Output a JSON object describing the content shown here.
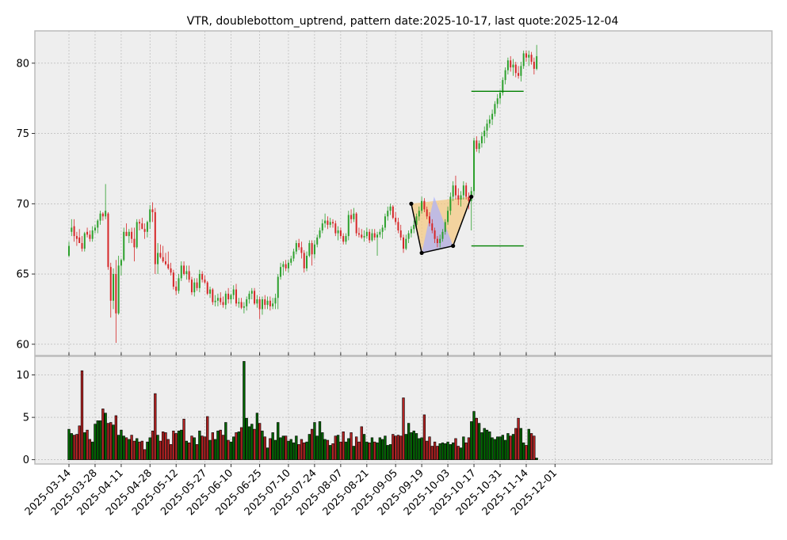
{
  "chart_data": {
    "type": "candlestick",
    "title": "VTR, doublebottom_uptrend, pattern date:2025-10-17, last quote:2025-12-04",
    "colors": {
      "up": "#2ca02c",
      "down": "#d62728",
      "vol_up": "#006400",
      "vol_down": "#b22222",
      "panel_bg": "#eeeeee",
      "grid": "#b0b0b0",
      "pattern_line": "#000000",
      "level_line": "#008000",
      "fill_orange": "#f5c77e",
      "fill_blue": "#aab0ff"
    },
    "price_axis": {
      "ylim": [
        59.2,
        82.3
      ],
      "ticks": [
        60,
        65,
        70,
        75,
        80
      ]
    },
    "volume_axis": {
      "ylim": [
        -0.5,
        12.2
      ],
      "ticks": [
        0,
        5,
        10
      ]
    },
    "x_tick_labels": [
      "2025-03-14",
      "2025-03-28",
      "2025-04-11",
      "2025-04-28",
      "2025-05-12",
      "2025-05-27",
      "2025-06-10",
      "2025-06-25",
      "2025-07-10",
      "2025-07-24",
      "2025-08-07",
      "2025-08-21",
      "2025-09-05",
      "2025-09-19",
      "2025-10-03",
      "2025-10-17",
      "2025-10-31",
      "2025-11-14",
      "2025-12-01"
    ],
    "start_date": "2025-03-14",
    "bar_count": 187,
    "grid": true,
    "candles": [
      [
        66.3,
        67.3,
        66.2,
        67.0,
        3.6
      ],
      [
        68.0,
        68.9,
        67.7,
        68.3,
        3.1
      ],
      [
        68.4,
        68.9,
        67.3,
        67.7,
        2.9
      ],
      [
        67.7,
        68.0,
        67.0,
        67.5,
        3.0
      ],
      [
        67.6,
        68.2,
        67.2,
        67.2,
        4.0
      ],
      [
        67.2,
        67.7,
        66.6,
        66.8,
        10.5
      ],
      [
        66.8,
        68.0,
        66.6,
        67.9,
        3.2
      ],
      [
        68.0,
        68.3,
        67.6,
        67.8,
        3.5
      ],
      [
        67.8,
        68.1,
        67.3,
        67.5,
        2.4
      ],
      [
        67.5,
        68.4,
        67.3,
        68.1,
        2.1
      ],
      [
        68.1,
        68.5,
        67.9,
        68.3,
        4.2
      ],
      [
        68.3,
        68.9,
        67.9,
        68.8,
        4.6
      ],
      [
        68.8,
        69.5,
        68.5,
        69.3,
        4.6
      ],
      [
        69.3,
        69.4,
        68.8,
        69.1,
        6.0
      ],
      [
        69.1,
        71.4,
        68.9,
        69.5,
        5.5
      ],
      [
        69.3,
        69.4,
        65.3,
        65.5,
        4.3
      ],
      [
        65.5,
        65.8,
        61.9,
        63.1,
        4.4
      ],
      [
        63.1,
        65.4,
        62.5,
        65.0,
        4.1
      ],
      [
        65.0,
        66.0,
        60.1,
        62.2,
        5.2
      ],
      [
        62.2,
        66.3,
        62.1,
        65.6,
        2.9
      ],
      [
        65.6,
        66.1,
        64.9,
        66.0,
        3.5
      ],
      [
        66.0,
        68.3,
        65.9,
        68.0,
        2.8
      ],
      [
        68.0,
        68.6,
        67.7,
        67.7,
        2.6
      ],
      [
        67.7,
        68.2,
        67.2,
        68.0,
        2.4
      ],
      [
        68.0,
        68.3,
        67.2,
        67.5,
        2.9
      ],
      [
        67.5,
        68.3,
        65.9,
        66.9,
        2.2
      ],
      [
        66.9,
        68.9,
        66.8,
        68.7,
        2.5
      ],
      [
        68.7,
        68.9,
        68.1,
        68.6,
        2.1
      ],
      [
        68.6,
        69.0,
        68.2,
        68.2,
        2.2
      ],
      [
        68.2,
        68.6,
        67.5,
        68.0,
        1.2
      ],
      [
        68.0,
        68.8,
        67.6,
        68.7,
        2.1
      ],
      [
        68.7,
        69.9,
        68.2,
        69.6,
        2.6
      ],
      [
        69.6,
        70.1,
        68.7,
        69.4,
        3.4
      ],
      [
        69.4,
        69.7,
        65.0,
        65.7,
        7.8
      ],
      [
        65.7,
        67.2,
        65.0,
        66.5,
        2.9
      ],
      [
        66.5,
        67.1,
        66.1,
        66.2,
        2.2
      ],
      [
        66.2,
        67.0,
        65.8,
        65.9,
        3.3
      ],
      [
        65.9,
        66.5,
        65.6,
        65.7,
        3.2
      ],
      [
        65.7,
        66.6,
        65.3,
        65.4,
        2.4
      ],
      [
        65.4,
        65.8,
        64.9,
        65.1,
        1.8
      ],
      [
        65.1,
        65.3,
        63.9,
        64.1,
        3.4
      ],
      [
        64.1,
        64.5,
        63.5,
        63.8,
        3.1
      ],
      [
        63.8,
        65.0,
        63.6,
        64.7,
        3.4
      ],
      [
        64.7,
        65.9,
        64.5,
        65.6,
        3.5
      ],
      [
        65.6,
        65.9,
        64.9,
        65.0,
        4.8
      ],
      [
        65.0,
        65.6,
        64.6,
        65.2,
        2.2
      ],
      [
        65.2,
        65.6,
        64.4,
        64.6,
        2.0
      ],
      [
        64.6,
        64.8,
        63.5,
        63.7,
        2.8
      ],
      [
        63.7,
        64.7,
        63.4,
        64.4,
        2.6
      ],
      [
        64.4,
        64.7,
        63.8,
        64.0,
        1.8
      ],
      [
        64.0,
        65.3,
        63.7,
        65.0,
        3.4
      ],
      [
        65.0,
        65.2,
        64.4,
        64.6,
        2.8
      ],
      [
        64.6,
        64.9,
        64.3,
        64.4,
        2.7
      ],
      [
        64.4,
        64.5,
        63.5,
        63.6,
        5.1
      ],
      [
        63.6,
        64.1,
        63.3,
        63.9,
        2.3
      ],
      [
        63.9,
        64.0,
        62.8,
        63.0,
        3.2
      ],
      [
        63.0,
        63.5,
        62.7,
        63.1,
        2.4
      ],
      [
        63.1,
        63.6,
        62.7,
        63.3,
        3.4
      ],
      [
        63.3,
        63.7,
        62.8,
        63.0,
        3.5
      ],
      [
        63.0,
        63.4,
        62.6,
        62.8,
        2.9
      ],
      [
        62.8,
        63.8,
        62.5,
        63.6,
        4.4
      ],
      [
        63.6,
        64.0,
        62.9,
        63.2,
        2.3
      ],
      [
        63.2,
        63.6,
        62.9,
        63.5,
        2.1
      ],
      [
        63.5,
        64.2,
        63.2,
        63.9,
        2.7
      ],
      [
        63.9,
        64.3,
        62.7,
        62.9,
        3.2
      ],
      [
        62.9,
        63.3,
        62.6,
        63.0,
        3.3
      ],
      [
        63.0,
        63.3,
        62.5,
        62.6,
        3.8
      ],
      [
        62.6,
        63.0,
        62.2,
        62.7,
        11.6
      ],
      [
        62.7,
        63.4,
        62.4,
        63.2,
        4.9
      ],
      [
        63.2,
        63.8,
        62.9,
        63.6,
        3.9
      ],
      [
        63.6,
        64.0,
        63.2,
        63.8,
        4.2
      ],
      [
        63.8,
        64.0,
        62.8,
        62.9,
        3.6
      ],
      [
        62.9,
        63.5,
        62.6,
        63.2,
        5.5
      ],
      [
        63.2,
        63.4,
        61.8,
        62.5,
        4.3
      ],
      [
        62.5,
        63.4,
        62.1,
        63.2,
        3.4
      ],
      [
        63.2,
        63.5,
        62.5,
        62.8,
        2.7
      ],
      [
        62.8,
        63.4,
        62.5,
        63.1,
        1.4
      ],
      [
        63.1,
        63.4,
        62.4,
        62.7,
        2.5
      ],
      [
        62.7,
        63.3,
        62.5,
        62.9,
        3.2
      ],
      [
        62.9,
        63.6,
        62.5,
        63.3,
        2.3
      ],
      [
        63.3,
        65.0,
        62.5,
        64.8,
        4.4
      ],
      [
        64.8,
        65.8,
        64.6,
        65.5,
        2.6
      ],
      [
        65.5,
        65.9,
        64.9,
        65.7,
        2.8
      ],
      [
        65.7,
        66.0,
        65.2,
        65.4,
        2.8
      ],
      [
        65.4,
        66.0,
        65.1,
        65.8,
        2.2
      ],
      [
        65.8,
        66.3,
        65.6,
        66.1,
        2.4
      ],
      [
        66.1,
        66.8,
        65.9,
        66.6,
        2.0
      ],
      [
        66.6,
        67.4,
        66.4,
        67.2,
        2.8
      ],
      [
        67.2,
        67.5,
        66.7,
        66.9,
        1.8
      ],
      [
        66.9,
        67.3,
        66.1,
        66.5,
        2.4
      ],
      [
        66.5,
        66.7,
        65.1,
        65.4,
        2.0
      ],
      [
        65.4,
        66.6,
        65.2,
        66.3,
        2.1
      ],
      [
        66.3,
        67.4,
        66.2,
        67.2,
        3.0
      ],
      [
        67.2,
        67.4,
        65.6,
        66.4,
        3.6
      ],
      [
        66.4,
        67.4,
        66.1,
        67.1,
        4.4
      ],
      [
        67.1,
        67.8,
        66.9,
        67.6,
        2.8
      ],
      [
        67.6,
        68.3,
        67.5,
        68.1,
        4.5
      ],
      [
        68.1,
        68.9,
        67.9,
        68.6,
        3.2
      ],
      [
        68.6,
        69.3,
        68.3,
        68.8,
        2.4
      ],
      [
        68.8,
        69.1,
        68.2,
        68.5,
        2.3
      ],
      [
        68.5,
        69.0,
        68.3,
        68.7,
        1.7
      ],
      [
        68.7,
        68.9,
        68.3,
        68.6,
        1.9
      ],
      [
        68.6,
        68.8,
        67.7,
        67.9,
        2.8
      ],
      [
        67.9,
        68.4,
        67.4,
        68.1,
        2.9
      ],
      [
        68.1,
        68.3,
        67.5,
        67.7,
        2.1
      ],
      [
        67.7,
        67.9,
        67.1,
        67.3,
        3.3
      ],
      [
        67.3,
        67.9,
        67.1,
        67.7,
        2.1
      ],
      [
        67.7,
        69.5,
        67.4,
        69.2,
        2.5
      ],
      [
        69.2,
        69.6,
        68.6,
        68.9,
        3.2
      ],
      [
        68.9,
        69.7,
        68.7,
        69.3,
        1.6
      ],
      [
        69.3,
        69.4,
        67.7,
        67.9,
        2.7
      ],
      [
        67.9,
        68.3,
        67.6,
        67.8,
        2.1
      ],
      [
        67.8,
        68.2,
        67.5,
        67.6,
        3.9
      ],
      [
        67.6,
        68.1,
        67.3,
        67.7,
        3.0
      ],
      [
        67.7,
        68.3,
        67.5,
        68.0,
        2.1
      ],
      [
        68.0,
        68.2,
        67.2,
        67.4,
        2.0
      ],
      [
        67.4,
        68.2,
        67.3,
        67.9,
        2.6
      ],
      [
        67.9,
        68.2,
        67.4,
        67.6,
        2.1
      ],
      [
        67.6,
        68.0,
        66.3,
        67.8,
        2.0
      ],
      [
        67.8,
        68.2,
        67.6,
        68.0,
        2.6
      ],
      [
        68.0,
        68.5,
        67.5,
        68.3,
        2.4
      ],
      [
        68.3,
        69.3,
        68.1,
        69.1,
        2.8
      ],
      [
        69.1,
        69.8,
        68.8,
        69.5,
        1.7
      ],
      [
        69.5,
        70.0,
        69.2,
        69.8,
        1.8
      ],
      [
        69.8,
        69.9,
        68.9,
        69.0,
        3.0
      ],
      [
        69.0,
        69.4,
        68.5,
        68.7,
        2.8
      ],
      [
        68.7,
        69.0,
        67.9,
        68.1,
        2.9
      ],
      [
        68.1,
        68.5,
        67.4,
        67.6,
        2.8
      ],
      [
        67.6,
        67.8,
        66.5,
        66.8,
        7.3
      ],
      [
        66.8,
        67.8,
        66.7,
        67.5,
        3.0
      ],
      [
        67.5,
        68.1,
        67.2,
        67.9,
        4.3
      ],
      [
        67.9,
        68.4,
        67.6,
        68.2,
        3.2
      ],
      [
        68.2,
        68.8,
        67.9,
        68.5,
        3.4
      ],
      [
        68.5,
        69.3,
        68.3,
        69.1,
        3.1
      ],
      [
        69.1,
        69.8,
        68.8,
        69.5,
        2.5
      ],
      [
        69.5,
        70.5,
        69.3,
        70.2,
        2.6
      ],
      [
        70.2,
        70.4,
        69.4,
        69.6,
        5.3
      ],
      [
        69.6,
        69.8,
        68.9,
        69.1,
        2.2
      ],
      [
        69.1,
        69.4,
        68.4,
        68.6,
        2.7
      ],
      [
        68.6,
        68.9,
        67.9,
        68.1,
        1.6
      ],
      [
        68.1,
        68.3,
        67.2,
        67.5,
        2.1
      ],
      [
        67.5,
        67.7,
        66.9,
        67.2,
        1.6
      ],
      [
        67.2,
        67.8,
        66.9,
        67.5,
        1.9
      ],
      [
        67.5,
        68.2,
        67.3,
        68.0,
        2.0
      ],
      [
        68.0,
        68.9,
        67.8,
        68.7,
        1.9
      ],
      [
        68.7,
        69.8,
        68.5,
        69.5,
        2.1
      ],
      [
        69.5,
        70.8,
        69.2,
        70.5,
        1.8
      ],
      [
        70.5,
        71.6,
        70.2,
        71.3,
        2.0
      ],
      [
        71.3,
        72.0,
        70.3,
        70.6,
        2.5
      ],
      [
        70.6,
        71.1,
        69.9,
        70.3,
        1.6
      ],
      [
        70.3,
        70.9,
        69.8,
        70.6,
        1.4
      ],
      [
        70.6,
        71.6,
        70.3,
        71.3,
        2.7
      ],
      [
        71.3,
        71.5,
        70.3,
        70.5,
        2.0
      ],
      [
        70.5,
        70.8,
        69.6,
        70.2,
        2.6
      ],
      [
        70.2,
        71.2,
        68.1,
        70.9,
        4.5
      ],
      [
        70.9,
        74.7,
        70.6,
        74.5,
        5.7
      ],
      [
        74.5,
        74.8,
        73.7,
        73.9,
        4.9
      ],
      [
        73.9,
        74.5,
        73.6,
        74.3,
        4.3
      ],
      [
        74.3,
        75.1,
        74.0,
        74.8,
        3.2
      ],
      [
        74.8,
        75.5,
        74.3,
        75.2,
        3.7
      ],
      [
        75.2,
        76.0,
        74.7,
        75.7,
        3.5
      ],
      [
        75.7,
        76.3,
        75.4,
        76.0,
        3.3
      ],
      [
        76.0,
        76.7,
        75.6,
        76.4,
        2.6
      ],
      [
        76.4,
        77.3,
        76.2,
        77.1,
        2.4
      ],
      [
        77.1,
        77.8,
        76.8,
        77.5,
        2.7
      ],
      [
        77.5,
        78.1,
        77.1,
        77.9,
        2.7
      ],
      [
        77.9,
        79.0,
        77.7,
        78.8,
        2.9
      ],
      [
        78.8,
        79.7,
        78.5,
        79.5,
        2.3
      ],
      [
        79.5,
        80.4,
        79.2,
        80.2,
        3.1
      ],
      [
        80.2,
        80.5,
        79.4,
        79.7,
        2.8
      ],
      [
        79.7,
        80.3,
        79.1,
        79.9,
        3.0
      ],
      [
        79.9,
        80.1,
        79.0,
        79.3,
        3.7
      ],
      [
        79.3,
        79.8,
        78.9,
        79.1,
        4.9
      ],
      [
        79.1,
        80.1,
        78.7,
        79.8,
        3.7
      ],
      [
        79.8,
        80.9,
        79.6,
        80.7,
        2.0
      ],
      [
        80.7,
        80.9,
        80.1,
        80.4,
        1.7
      ],
      [
        80.4,
        80.9,
        79.8,
        80.6,
        3.6
      ],
      [
        80.6,
        80.8,
        79.9,
        80.1,
        3.1
      ],
      [
        80.1,
        80.4,
        79.2,
        79.6,
        2.8
      ],
      [
        79.6,
        81.3,
        79.5,
        80.5,
        0.2
      ]
    ],
    "pattern_points": [
      {
        "date": "2025-09-15",
        "value": 70.0
      },
      {
        "date": "2025-09-19",
        "value": 66.5
      },
      {
        "date": "2025-10-07",
        "value": 67.0
      },
      {
        "date": "2025-10-16",
        "value": 70.5
      }
    ],
    "levels": [
      {
        "value": 78.0,
        "start": "2025-10-16",
        "end": "2025-11-13"
      },
      {
        "value": 67.0,
        "start": "2025-10-16",
        "end": "2025-11-13"
      }
    ]
  }
}
